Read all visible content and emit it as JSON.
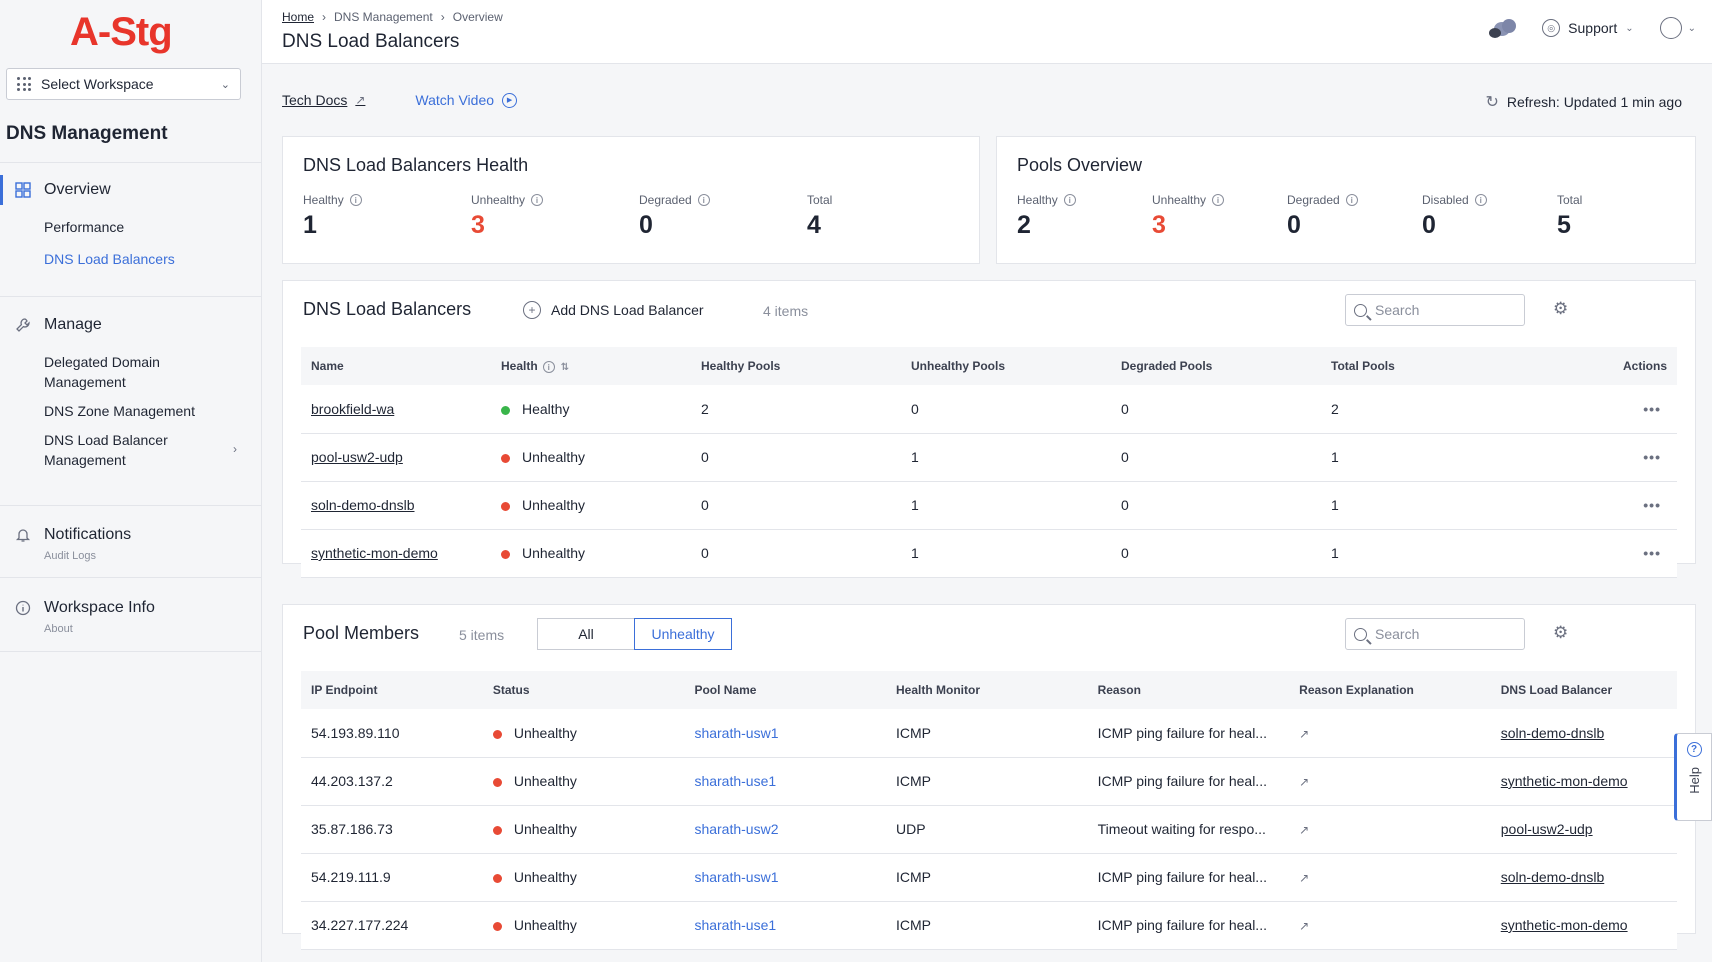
{
  "sidebar": {
    "logo": "A-Stg",
    "workspace_select": "Select Workspace",
    "app_title": "DNS Management",
    "overview": {
      "label": "Overview",
      "items": [
        "Performance",
        "DNS Load Balancers"
      ]
    },
    "manage": {
      "label": "Manage",
      "items": [
        "Delegated Domain Management",
        "DNS Zone Management",
        "DNS Load Balancer Management"
      ]
    },
    "notifications": {
      "label": "Notifications",
      "sub": "Audit Logs"
    },
    "workspace_info": {
      "label": "Workspace Info",
      "sub": "About"
    }
  },
  "header": {
    "breadcrumbs": [
      "Home",
      "DNS Management",
      "Overview"
    ],
    "title": "DNS Load Balancers",
    "support": "Support"
  },
  "links": {
    "tech_docs": "Tech Docs",
    "watch_video": "Watch Video",
    "refresh": "Refresh: Updated 1 min ago"
  },
  "lb_health": {
    "title": "DNS Load Balancers Health",
    "stats": [
      {
        "label": "Healthy",
        "value": "1"
      },
      {
        "label": "Unhealthy",
        "value": "3"
      },
      {
        "label": "Degraded",
        "value": "0"
      },
      {
        "label": "Total",
        "value": "4"
      }
    ]
  },
  "pools_overview": {
    "title": "Pools Overview",
    "stats": [
      {
        "label": "Healthy",
        "value": "2"
      },
      {
        "label": "Unhealthy",
        "value": "3"
      },
      {
        "label": "Degraded",
        "value": "0"
      },
      {
        "label": "Disabled",
        "value": "0"
      },
      {
        "label": "Total",
        "value": "5"
      }
    ]
  },
  "lb_table": {
    "title": "DNS Load Balancers",
    "add_label": "Add DNS Load Balancer",
    "count": "4 items",
    "search_placeholder": "Search",
    "columns": [
      "Name",
      "Health",
      "Healthy Pools",
      "Unhealthy Pools",
      "Degraded Pools",
      "Total Pools",
      "Actions"
    ],
    "rows": [
      [
        "brookfield-wa",
        "Healthy",
        "2",
        "0",
        "0",
        "2"
      ],
      [
        "pool-usw2-udp",
        "Unhealthy",
        "0",
        "1",
        "0",
        "1"
      ],
      [
        "soln-demo-dnslb",
        "Unhealthy",
        "0",
        "1",
        "0",
        "1"
      ],
      [
        "synthetic-mon-demo",
        "Unhealthy",
        "0",
        "1",
        "0",
        "1"
      ]
    ]
  },
  "pool_members": {
    "title": "Pool Members",
    "count": "5 items",
    "filter_all": "All",
    "filter_unhealthy": "Unhealthy",
    "search_placeholder": "Search",
    "columns": [
      "IP Endpoint",
      "Status",
      "Pool Name",
      "Health Monitor",
      "Reason",
      "Reason Explanation",
      "DNS Load Balancer"
    ],
    "rows": [
      [
        "54.193.89.110",
        "Unhealthy",
        "sharath-usw1",
        "ICMP",
        "ICMP ping failure for heal...",
        "soln-demo-dnslb"
      ],
      [
        "44.203.137.2",
        "Unhealthy",
        "sharath-use1",
        "ICMP",
        "ICMP ping failure for heal...",
        "synthetic-mon-demo"
      ],
      [
        "35.87.186.73",
        "Unhealthy",
        "sharath-usw2",
        "UDP",
        "Timeout waiting for respo...",
        "pool-usw2-udp"
      ],
      [
        "54.219.111.9",
        "Unhealthy",
        "sharath-usw1",
        "ICMP",
        "ICMP ping failure for heal...",
        "soln-demo-dnslb"
      ],
      [
        "34.227.177.224",
        "Unhealthy",
        "sharath-use1",
        "ICMP",
        "ICMP ping failure for heal...",
        "synthetic-mon-demo"
      ]
    ]
  },
  "help": "Help",
  "colors": {
    "accent": "#3b6fd9",
    "healthy": "#39b54a",
    "unhealthy": "#e84a35",
    "brand": "#e8352b"
  }
}
